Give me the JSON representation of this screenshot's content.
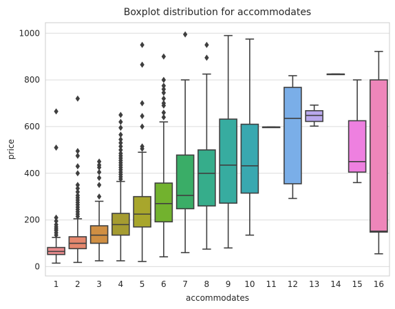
{
  "chart_data": {
    "type": "box",
    "title": "Boxplot distribution for accommodates",
    "xlabel": "accommodates",
    "ylabel": "price",
    "categories": [
      "1",
      "2",
      "3",
      "4",
      "5",
      "6",
      "7",
      "8",
      "9",
      "10",
      "11",
      "12",
      "13",
      "14",
      "15",
      "16"
    ],
    "ylim": [
      -40,
      1045
    ],
    "yticks": [
      0,
      200,
      400,
      600,
      800,
      1000
    ],
    "grid": "horizontal",
    "boxes": [
      {
        "category": "1",
        "color": "#e88a8c",
        "whislo": 15,
        "q1": 52,
        "med": 65,
        "q3": 82,
        "whishi": 125,
        "fliers": [
          135,
          145,
          155,
          162,
          170,
          180,
          195,
          210,
          510,
          665
        ]
      },
      {
        "category": "2",
        "color": "#e5876d",
        "whislo": 18,
        "q1": 77,
        "med": 100,
        "q3": 128,
        "whishi": 205,
        "fliers": [
          215,
          225,
          235,
          245,
          255,
          265,
          275,
          285,
          295,
          305,
          320,
          335,
          350,
          400,
          430,
          475,
          495,
          720
        ]
      },
      {
        "category": "3",
        "color": "#d08f43",
        "whislo": 25,
        "q1": 100,
        "med": 135,
        "q3": 175,
        "whishi": 280,
        "fliers": [
          300,
          350,
          380,
          405,
          425,
          435,
          450
        ]
      },
      {
        "category": "4",
        "color": "#a59c31",
        "whislo": 25,
        "q1": 135,
        "med": 180,
        "q3": 228,
        "whishi": 365,
        "fliers": [
          375,
          385,
          395,
          405,
          415,
          425,
          435,
          445,
          455,
          465,
          475,
          485,
          500,
          515,
          530,
          545,
          565,
          595,
          620,
          650
        ]
      },
      {
        "category": "5",
        "color": "#a8a62c",
        "whislo": 22,
        "q1": 170,
        "med": 225,
        "q3": 300,
        "whishi": 490,
        "fliers": [
          505,
          515,
          600,
          645,
          700,
          865,
          950
        ]
      },
      {
        "category": "6",
        "color": "#72b22e",
        "whislo": 42,
        "q1": 192,
        "med": 270,
        "q3": 358,
        "whishi": 620,
        "fliers": [
          640,
          660,
          690,
          700,
          720,
          745,
          760,
          775,
          800,
          900
        ]
      },
      {
        "category": "7",
        "color": "#3aad67",
        "whislo": 60,
        "q1": 248,
        "med": 305,
        "q3": 478,
        "whishi": 800,
        "fliers": [
          995
        ]
      },
      {
        "category": "8",
        "color": "#36ad8b",
        "whislo": 75,
        "q1": 260,
        "med": 400,
        "q3": 500,
        "whishi": 825,
        "fliers": [
          895,
          950
        ]
      },
      {
        "category": "9",
        "color": "#37aca0",
        "whislo": 80,
        "q1": 272,
        "med": 435,
        "q3": 632,
        "whishi": 990,
        "fliers": []
      },
      {
        "category": "10",
        "color": "#39a8b0",
        "whislo": 135,
        "q1": 315,
        "med": 432,
        "q3": 610,
        "whishi": 975,
        "fliers": []
      },
      {
        "category": "11",
        "color": "#3aa5c2",
        "whislo": 598,
        "q1": 598,
        "med": 598,
        "q3": 598,
        "whishi": 598,
        "fliers": []
      },
      {
        "category": "12",
        "color": "#7aaee8",
        "whislo": 292,
        "q1": 355,
        "med": 635,
        "q3": 768,
        "whishi": 818,
        "fliers": []
      },
      {
        "category": "13",
        "color": "#b9a8ec",
        "whislo": 602,
        "q1": 622,
        "med": 648,
        "q3": 668,
        "whishi": 692,
        "fliers": []
      },
      {
        "category": "14",
        "color": "#d79be8",
        "whislo": 825,
        "q1": 825,
        "med": 825,
        "q3": 825,
        "whishi": 825,
        "fliers": []
      },
      {
        "category": "15",
        "color": "#ee80e0",
        "whislo": 360,
        "q1": 405,
        "med": 450,
        "q3": 625,
        "whishi": 800,
        "fliers": []
      },
      {
        "category": "16",
        "color": "#ee86ba",
        "whislo": 55,
        "q1": 148,
        "med": 152,
        "q3": 800,
        "whishi": 922,
        "fliers": []
      }
    ]
  }
}
